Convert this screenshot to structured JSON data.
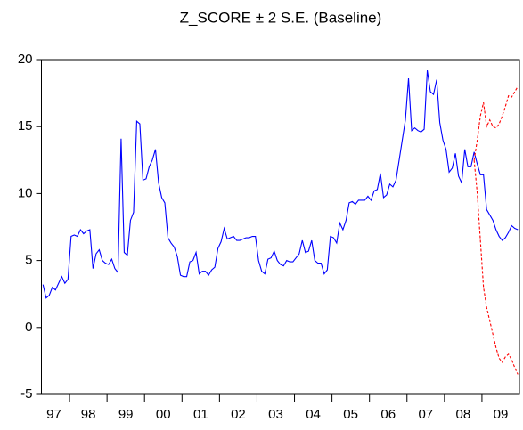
{
  "chart_data": {
    "type": "line",
    "title": "Z_SCORE ± 2 S.E. (Baseline)",
    "categories": [
      null,
      null,
      null,
      null,
      "97",
      null,
      null,
      null,
      null,
      null,
      null,
      null,
      null,
      null,
      null,
      "98",
      null,
      null,
      null,
      null,
      null,
      null,
      null,
      null,
      null,
      null,
      null,
      "99",
      null,
      null,
      null,
      null,
      null,
      null,
      null,
      null,
      null,
      null,
      null,
      "00",
      null,
      null,
      null,
      null,
      null,
      null,
      null,
      null,
      null,
      null,
      null,
      "01",
      null,
      null,
      null,
      null,
      null,
      null,
      null,
      null,
      null,
      null,
      null,
      "02",
      null,
      null,
      null,
      null,
      null,
      null,
      null,
      null,
      null,
      null,
      null,
      "03",
      null,
      null,
      null,
      null,
      null,
      null,
      null,
      null,
      null,
      null,
      null,
      "04",
      null,
      null,
      null,
      null,
      null,
      null,
      null,
      null,
      null,
      null,
      null,
      "05",
      null,
      null,
      null,
      null,
      null,
      null,
      null,
      null,
      null,
      null,
      null,
      "06",
      null,
      null,
      null,
      null,
      null,
      null,
      null,
      null,
      null,
      null,
      null,
      "07",
      null,
      null,
      null,
      null,
      null,
      null,
      null,
      null,
      null,
      null,
      null,
      "08",
      null,
      null,
      null,
      null,
      null,
      null,
      null,
      null,
      null,
      null,
      null,
      "09",
      null,
      null,
      null,
      null,
      null
    ],
    "series": [
      {
        "color": "#0000ff",
        "dash": false,
        "values": [
          3.2,
          2.2,
          2.4,
          3.0,
          2.8,
          3.3,
          3.8,
          3.3,
          3.6,
          6.8,
          6.9,
          6.8,
          7.3,
          7.0,
          7.2,
          7.3,
          4.4,
          5.5,
          5.8,
          5.0,
          4.8,
          4.7,
          5.1,
          4.4,
          4.1,
          14.1,
          5.6,
          5.4,
          8.0,
          8.6,
          15.4,
          15.2,
          11.0,
          11.1,
          12.0,
          12.5,
          13.3,
          10.8,
          9.7,
          9.3,
          6.7,
          6.3,
          6.0,
          5.3,
          3.9,
          3.8,
          3.8,
          4.9,
          5.0,
          5.6,
          4.0,
          4.2,
          4.2,
          3.9,
          4.3,
          4.5,
          5.9,
          6.4,
          7.4,
          6.6,
          6.7,
          6.8,
          6.5,
          6.5,
          6.6,
          6.7,
          6.7,
          6.8,
          6.8,
          5.0,
          4.2,
          4.0,
          5.1,
          5.2,
          5.7,
          5.0,
          4.7,
          4.6,
          5.0,
          4.9,
          4.9,
          5.2,
          5.5,
          6.5,
          5.6,
          5.7,
          6.5,
          5.0,
          4.8,
          4.8,
          4.0,
          4.3,
          6.8,
          6.7,
          6.3,
          7.8,
          7.3,
          8.0,
          9.3,
          9.4,
          9.2,
          9.5,
          9.5,
          9.5,
          9.8,
          9.5,
          10.2,
          10.3,
          11.5,
          9.7,
          9.9,
          10.7,
          10.5,
          11.0,
          12.5,
          14.0,
          15.5,
          18.6,
          14.7,
          14.9,
          14.7,
          14.6,
          14.8,
          19.2,
          17.6,
          17.4,
          18.5,
          15.3,
          14.0,
          13.3,
          11.6,
          11.9,
          13.0,
          11.3,
          10.8,
          13.3,
          12.0,
          12.0,
          13.1,
          12.2,
          11.4,
          11.4,
          8.8,
          8.4,
          8.0,
          7.3,
          6.8,
          6.5,
          6.7,
          7.1,
          7.6,
          7.4,
          7.3
        ]
      },
      {
        "color": "#ff0000",
        "dash": true,
        "values": [
          null,
          null,
          null,
          null,
          null,
          null,
          null,
          null,
          null,
          null,
          null,
          null,
          null,
          null,
          null,
          null,
          null,
          null,
          null,
          null,
          null,
          null,
          null,
          null,
          null,
          null,
          null,
          null,
          null,
          null,
          null,
          null,
          null,
          null,
          null,
          null,
          null,
          null,
          null,
          null,
          null,
          null,
          null,
          null,
          null,
          null,
          null,
          null,
          null,
          null,
          null,
          null,
          null,
          null,
          null,
          null,
          null,
          null,
          null,
          null,
          null,
          null,
          null,
          null,
          null,
          null,
          null,
          null,
          null,
          null,
          null,
          null,
          null,
          null,
          null,
          null,
          null,
          null,
          null,
          null,
          null,
          null,
          null,
          null,
          null,
          null,
          null,
          null,
          null,
          null,
          null,
          null,
          null,
          null,
          null,
          null,
          null,
          null,
          null,
          null,
          null,
          null,
          null,
          null,
          null,
          null,
          null,
          null,
          null,
          null,
          null,
          null,
          null,
          null,
          null,
          null,
          null,
          null,
          null,
          null,
          null,
          null,
          null,
          null,
          null,
          null,
          null,
          null,
          null,
          null,
          null,
          null,
          null,
          null,
          null,
          null,
          null,
          null,
          12.5,
          14.0,
          15.8,
          16.8,
          15.0,
          15.5,
          15.0,
          14.9,
          15.2,
          15.8,
          16.5,
          17.3,
          17.2,
          17.6,
          18.0
        ]
      },
      {
        "color": "#ff0000",
        "dash": true,
        "values": [
          null,
          null,
          null,
          null,
          null,
          null,
          null,
          null,
          null,
          null,
          null,
          null,
          null,
          null,
          null,
          null,
          null,
          null,
          null,
          null,
          null,
          null,
          null,
          null,
          null,
          null,
          null,
          null,
          null,
          null,
          null,
          null,
          null,
          null,
          null,
          null,
          null,
          null,
          null,
          null,
          null,
          null,
          null,
          null,
          null,
          null,
          null,
          null,
          null,
          null,
          null,
          null,
          null,
          null,
          null,
          null,
          null,
          null,
          null,
          null,
          null,
          null,
          null,
          null,
          null,
          null,
          null,
          null,
          null,
          null,
          null,
          null,
          null,
          null,
          null,
          null,
          null,
          null,
          null,
          null,
          null,
          null,
          null,
          null,
          null,
          null,
          null,
          null,
          null,
          null,
          null,
          null,
          null,
          null,
          null,
          null,
          null,
          null,
          null,
          null,
          null,
          null,
          null,
          null,
          null,
          null,
          null,
          null,
          null,
          null,
          null,
          null,
          null,
          null,
          null,
          null,
          null,
          null,
          null,
          null,
          null,
          null,
          null,
          null,
          null,
          null,
          null,
          null,
          null,
          null,
          null,
          null,
          null,
          null,
          null,
          null,
          null,
          null,
          12.5,
          10.0,
          6.5,
          3.0,
          1.5,
          0.5,
          -0.5,
          -1.5,
          -2.3,
          -2.6,
          -2.2,
          -2.0,
          -2.4,
          -3.0,
          -3.5
        ]
      }
    ],
    "ylim": [
      -5,
      20
    ],
    "yticks": [
      -5,
      0,
      5,
      10,
      15,
      20
    ],
    "grid": false
  }
}
